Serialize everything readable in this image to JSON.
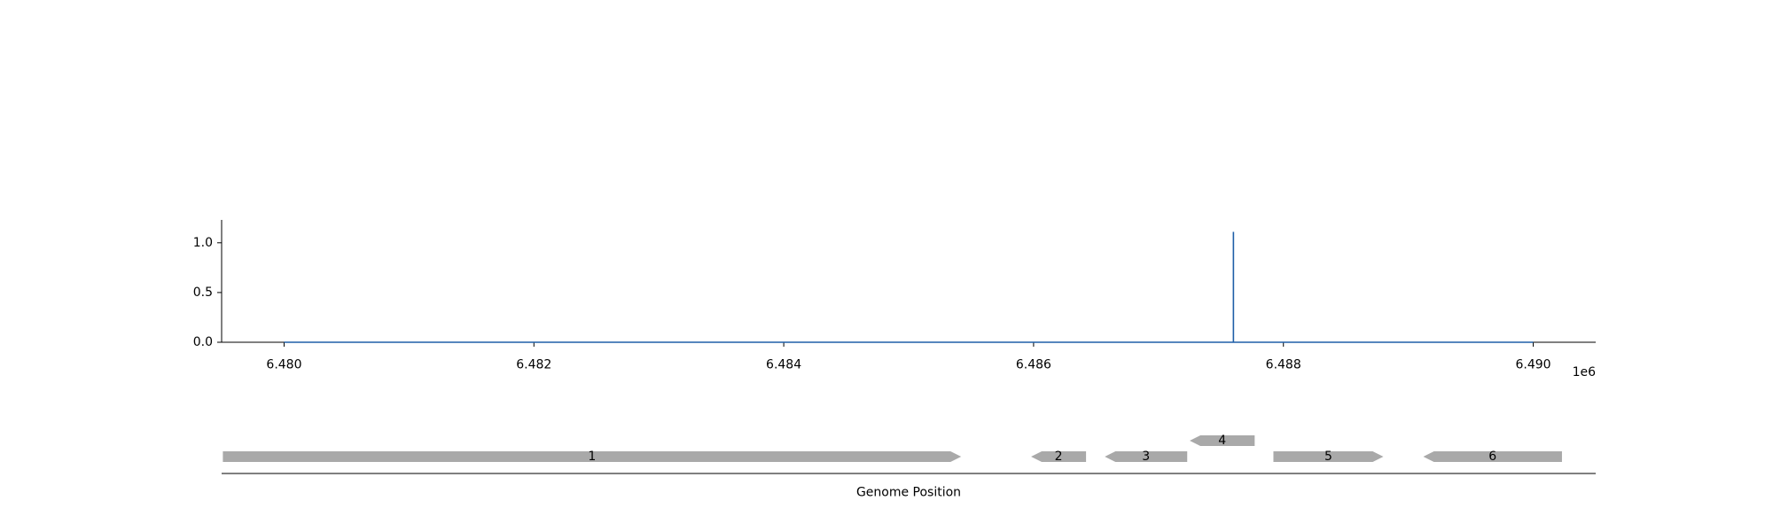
{
  "chart_data": [
    {
      "type": "line",
      "title": "",
      "xlabel": "",
      "ylabel": "",
      "x_offset_label": "1e6",
      "xlim": [
        6.4795,
        6.4905
      ],
      "ylim": [
        0,
        1.23
      ],
      "x_ticks": [
        6.48,
        6.482,
        6.484,
        6.486,
        6.488,
        6.49
      ],
      "x_tick_labels": [
        "6.480",
        "6.482",
        "6.484",
        "6.486",
        "6.488",
        "6.490"
      ],
      "y_ticks": [
        0.0,
        0.5,
        1.0
      ],
      "y_tick_labels": [
        "0.0",
        "0.5",
        "1.0"
      ],
      "grid": false,
      "color": "#1f5fa8",
      "series": [
        {
          "x": [
            6.48,
            6.4876,
            6.4876,
            6.4876,
            6.49
          ],
          "y": [
            0,
            0,
            1.11,
            0,
            0
          ]
        }
      ]
    },
    {
      "type": "gene_track",
      "xlabel": "Genome Position",
      "color": "#a9a9a9",
      "genes": [
        {
          "label": "1",
          "start": 6.47951,
          "end": 6.48542,
          "strand": "+",
          "row": 0
        },
        {
          "label": "2",
          "start": 6.48598,
          "end": 6.48642,
          "strand": "-",
          "row": 0
        },
        {
          "label": "3",
          "start": 6.48657,
          "end": 6.48723,
          "strand": "-",
          "row": 0
        },
        {
          "label": "4",
          "start": 6.48725,
          "end": 6.48777,
          "strand": "-",
          "row": 1
        },
        {
          "label": "5",
          "start": 6.48792,
          "end": 6.4888,
          "strand": "+",
          "row": 0
        },
        {
          "label": "6",
          "start": 6.48912,
          "end": 6.49023,
          "strand": "-",
          "row": 0
        }
      ]
    }
  ]
}
